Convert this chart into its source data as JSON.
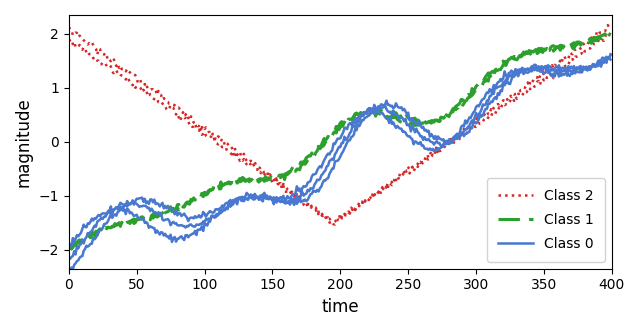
{
  "xlabel": "time",
  "ylabel": "magnitude",
  "xlim": [
    0,
    400
  ],
  "ylim": [
    -2.35,
    2.35
  ],
  "class0_color": "#4878cf",
  "class1_color": "#2ca02c",
  "class2_color": "#d62728",
  "class0_linestyle": "solid",
  "class1_linestyle": "dashed",
  "class2_linestyle": "dotted",
  "class0_linewidth": 1.8,
  "class1_linewidth": 2.2,
  "class2_linewidth": 1.8,
  "legend_labels": [
    "Class 0",
    "Class 1",
    "Class 2"
  ],
  "legend_loc": "lower right",
  "figsize": [
    6.4,
    3.31
  ],
  "dpi": 100,
  "xticks": [
    0,
    50,
    100,
    150,
    200,
    250,
    300,
    350,
    400
  ],
  "yticks": [
    -2,
    -1,
    0,
    1,
    2
  ]
}
